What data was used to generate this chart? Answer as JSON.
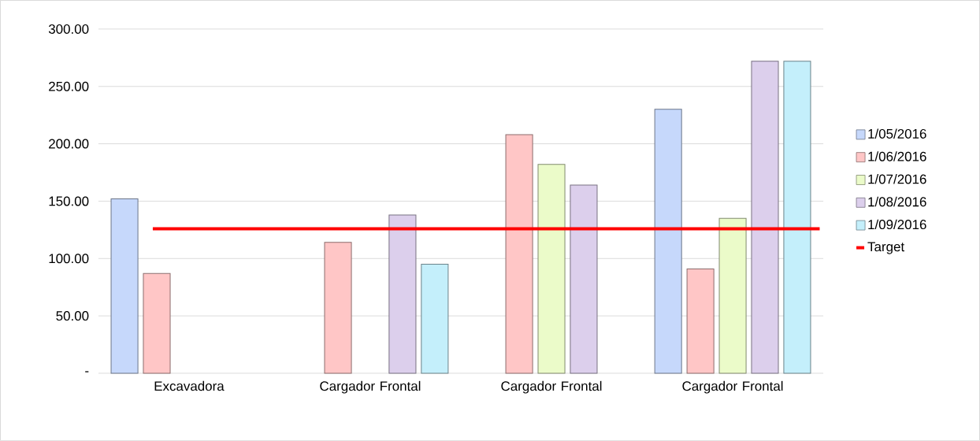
{
  "chart_data": {
    "type": "bar",
    "categories": [
      "Excavadora",
      "Cargador Frontal",
      "Cargador Frontal",
      "Cargador Frontal"
    ],
    "series": [
      {
        "name": "1/05/2016",
        "color": "#c6d8fb",
        "values": [
          152,
          null,
          null,
          230
        ]
      },
      {
        "name": "1/06/2016",
        "color": "#ffc6c6",
        "values": [
          87,
          114,
          208,
          91
        ]
      },
      {
        "name": "1/07/2016",
        "color": "#ebfbc9",
        "values": [
          null,
          null,
          182,
          135
        ]
      },
      {
        "name": "1/08/2016",
        "color": "#dccfec",
        "values": [
          null,
          138,
          164,
          272
        ]
      },
      {
        "name": "1/09/2016",
        "color": "#c4effb",
        "values": [
          null,
          95,
          null,
          272
        ]
      }
    ],
    "ylim": [
      0,
      300
    ],
    "yticks": [
      {
        "value": 0,
        "label": "-"
      },
      {
        "value": 50,
        "label": "50.00"
      },
      {
        "value": 100,
        "label": "100.00"
      },
      {
        "value": 150,
        "label": "150.00"
      },
      {
        "value": 200,
        "label": "200.00"
      },
      {
        "value": 250,
        "label": "250.00"
      },
      {
        "value": 300,
        "label": "300.00"
      }
    ],
    "ref_lines": [
      {
        "axis": "y",
        "value": 126,
        "label": "Target",
        "color": "#ff0000"
      }
    ],
    "grid": "y",
    "legend": "right"
  }
}
